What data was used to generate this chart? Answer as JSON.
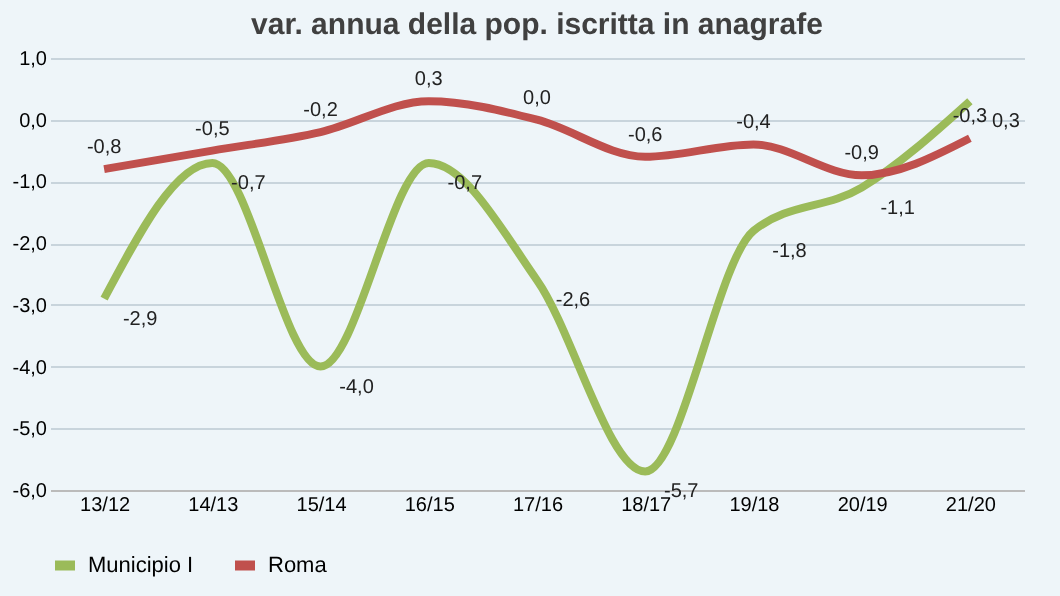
{
  "chart_data": {
    "type": "line",
    "title": "var. annua della pop. iscritta in anagrafe",
    "categories": [
      "13/12",
      "14/13",
      "15/14",
      "16/15",
      "17/16",
      "18/17",
      "19/18",
      "20/19",
      "21/20"
    ],
    "series": [
      {
        "name": "Municipio I",
        "color": "#9bbb59",
        "values": [
          -2.9,
          -0.7,
          -4.0,
          -0.7,
          -2.6,
          -5.7,
          -1.8,
          -1.1,
          0.3
        ],
        "value_labels": [
          "-2,9",
          "-0,7",
          "-4,0",
          "-0,7",
          "-2,6",
          "-5,7",
          "-1,8",
          "-1,1",
          "0,3"
        ]
      },
      {
        "name": "Roma",
        "color": "#c0504d",
        "values": [
          -0.8,
          -0.5,
          -0.2,
          0.3,
          0.0,
          -0.6,
          -0.4,
          -0.9,
          -0.3
        ],
        "value_labels": [
          "-0,8",
          "-0,5",
          "-0,2",
          "0,3",
          "0,0",
          "-0,6",
          "-0,4",
          "-0,9",
          "-0,3"
        ]
      }
    ],
    "ylim": [
      -6,
      1
    ],
    "yticks": [
      {
        "value": -6,
        "label": "-6,0"
      },
      {
        "value": -5,
        "label": "-5,0"
      },
      {
        "value": -4,
        "label": "-4,0"
      },
      {
        "value": -3,
        "label": "-3,0"
      },
      {
        "value": -2,
        "label": "-2,0"
      },
      {
        "value": -1,
        "label": "-1,0"
      },
      {
        "value": 0,
        "label": "0,0"
      },
      {
        "value": 1,
        "label": "1,0"
      }
    ],
    "grid": "y",
    "legend": "bottom",
    "marker": "none",
    "line_style": "solid"
  }
}
